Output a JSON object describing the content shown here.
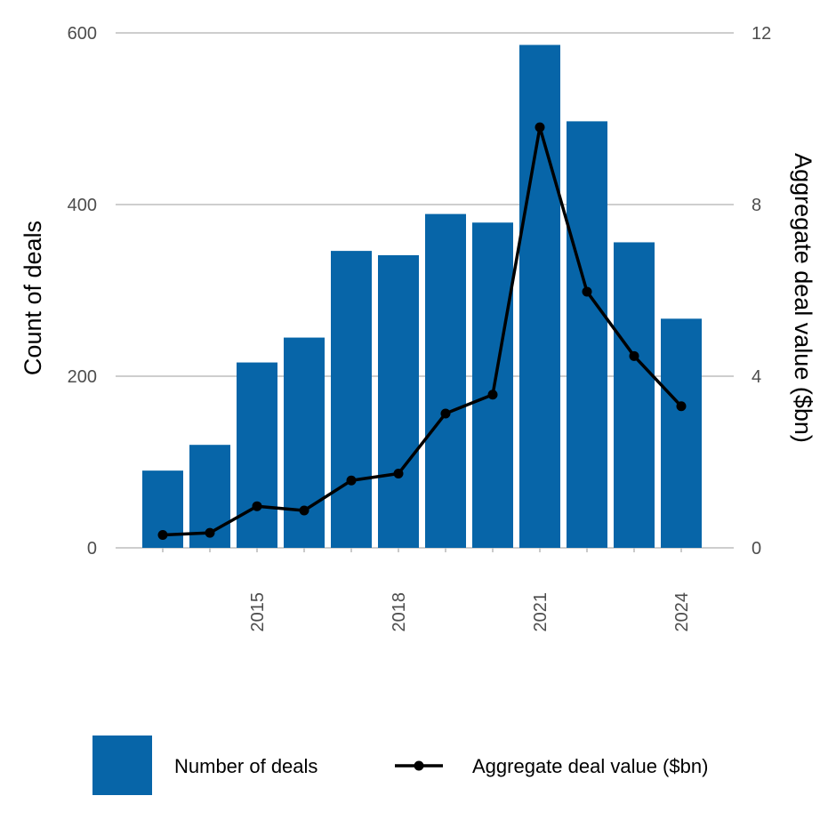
{
  "chart_data": {
    "type": "bar",
    "x": [
      2013,
      2014,
      2015,
      2016,
      2017,
      2018,
      2019,
      2020,
      2021,
      2022,
      2023,
      2024
    ],
    "series": [
      {
        "name": "Number of deals",
        "type": "bar",
        "axis": "left",
        "values": [
          90,
          120,
          216,
          245,
          346,
          341,
          389,
          379,
          586,
          497,
          356,
          267
        ]
      },
      {
        "name": "Aggregate deal value ($bn)",
        "type": "line",
        "axis": "right",
        "values": [
          0.3,
          0.35,
          0.97,
          0.87,
          1.57,
          1.73,
          3.13,
          3.57,
          9.8,
          5.97,
          4.47,
          3.3
        ]
      }
    ],
    "x_ticks": [
      "2015",
      "2018",
      "2021",
      "2024"
    ],
    "y_left": {
      "label": "Count of deals",
      "lim": [
        0,
        600
      ],
      "ticks": [
        "0",
        "200",
        "400",
        "600"
      ]
    },
    "y_right": {
      "label": "Aggregate deal value ($bn)",
      "lim": [
        0,
        12
      ],
      "ticks": [
        "0",
        "4",
        "8",
        "12"
      ]
    },
    "legend": [
      "Number of deals",
      "Aggregate deal value ($bn)"
    ],
    "legend_position": "bottom",
    "grid": true,
    "colors": {
      "bar": "#0765a8",
      "line": "#000000",
      "grid": "#bdbdbd",
      "tick_text": "#4d4d4d"
    }
  }
}
